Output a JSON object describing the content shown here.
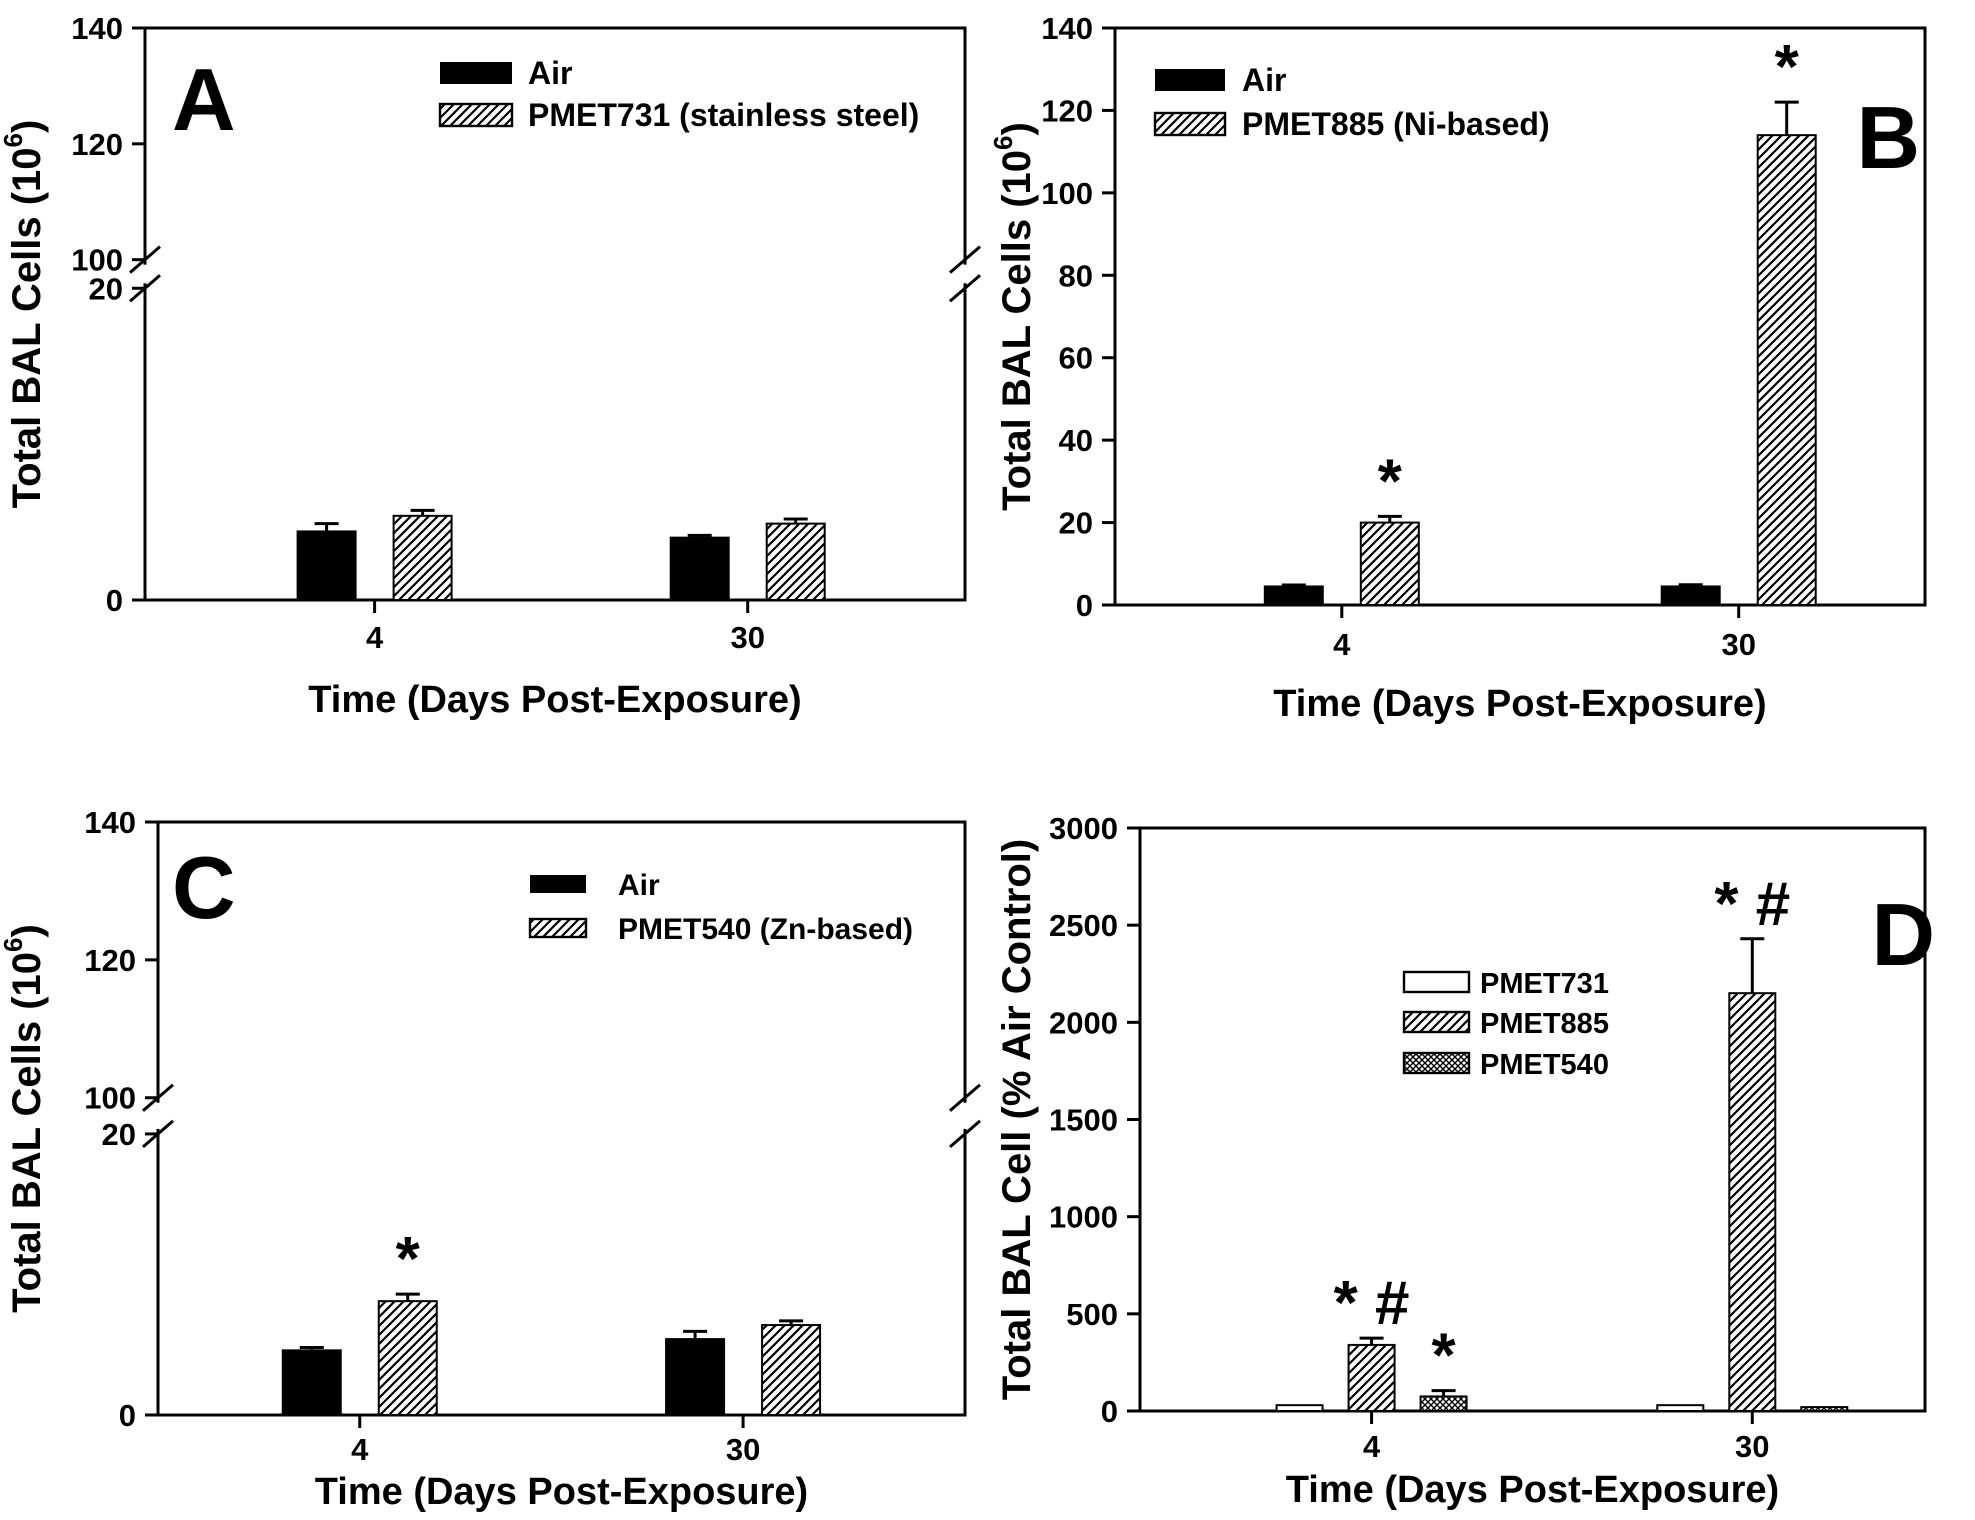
{
  "colors": {
    "ink": "#000000",
    "background": "#ffffff"
  },
  "chart_data": [
    {
      "panel": "A",
      "type": "bar",
      "letter": "A",
      "ylabel": "Total BAL Cells (10^6)",
      "ylabel_parts": {
        "main": "Total BAL Cells (10",
        "sup": "6",
        "end": ")"
      },
      "xlabel": "Time (Days Post-Exposure)",
      "categories": [
        "4",
        "30"
      ],
      "axis": {
        "style": "broken",
        "bottom": {
          "max": 20,
          "ticks": [
            0,
            20
          ]
        },
        "top": {
          "min": 100,
          "max": 140,
          "ticks": [
            100,
            120,
            140
          ]
        }
      },
      "series": [
        {
          "name": "Air",
          "pattern": "solid",
          "values": [
            4.4,
            4.0
          ],
          "errors": [
            0.5,
            0.15
          ]
        },
        {
          "name": "PMET731 (stainless steel)",
          "pattern": "diag",
          "values": [
            5.4,
            4.9
          ],
          "errors": [
            0.35,
            0.3
          ]
        }
      ],
      "annotations": [],
      "legend_position": "top-center"
    },
    {
      "panel": "B",
      "type": "bar",
      "letter": "B",
      "ylabel": "Total BAL Cells (10^6)",
      "ylabel_parts": {
        "main": "Total BAL Cells (10",
        "sup": "6",
        "end": ")"
      },
      "xlabel": "Time (Days Post-Exposure)",
      "categories": [
        "4",
        "30"
      ],
      "axis": {
        "style": "linear",
        "max": 140,
        "ticks": [
          0,
          20,
          40,
          60,
          80,
          100,
          120,
          140
        ]
      },
      "series": [
        {
          "name": "Air",
          "pattern": "solid",
          "values": [
            4.5,
            4.5
          ],
          "errors": [
            0.35,
            0.4
          ]
        },
        {
          "name": "PMET885 (Ni-based)",
          "pattern": "diag",
          "values": [
            20,
            114
          ],
          "errors": [
            1.5,
            8
          ]
        }
      ],
      "annotations": [
        {
          "category": 0,
          "series": 1,
          "text": "*"
        },
        {
          "category": 1,
          "series": 1,
          "text": "*"
        }
      ],
      "legend_position": "top-left"
    },
    {
      "panel": "C",
      "type": "bar",
      "letter": "C",
      "ylabel": "Total BAL Cells (10^6)",
      "ylabel_parts": {
        "main": "Total BAL Cells (10",
        "sup": "6",
        "end": ")"
      },
      "xlabel": "Time (Days Post-Exposure)",
      "categories": [
        "4",
        "30"
      ],
      "axis": {
        "style": "broken",
        "bottom": {
          "max": 20,
          "ticks": [
            0,
            20
          ]
        },
        "top": {
          "min": 100,
          "max": 140,
          "ticks": [
            100,
            120,
            140
          ]
        }
      },
      "series": [
        {
          "name": "Air",
          "pattern": "solid",
          "values": [
            4.6,
            5.4
          ],
          "errors": [
            0.2,
            0.55
          ]
        },
        {
          "name": "PMET540 (Zn-based)",
          "pattern": "diag",
          "values": [
            8.1,
            6.4
          ],
          "errors": [
            0.5,
            0.3
          ]
        }
      ],
      "annotations": [
        {
          "category": 0,
          "series": 1,
          "text": "*"
        }
      ],
      "legend_position": "top-right"
    },
    {
      "panel": "D",
      "type": "bar",
      "letter": "D",
      "ylabel": "Total BAL Cell (% Air Control)",
      "ylabel_parts": {
        "main": "Total BAL Cell (% Air Control)"
      },
      "xlabel": "Time (Days Post-Exposure)",
      "categories": [
        "4",
        "30"
      ],
      "axis": {
        "style": "linear",
        "max": 3000,
        "ticks": [
          0,
          500,
          1000,
          1500,
          2000,
          2500,
          3000
        ]
      },
      "series": [
        {
          "name": "PMET731",
          "pattern": "open",
          "values": [
            30,
            30
          ],
          "errors": [
            0,
            0
          ]
        },
        {
          "name": "PMET885",
          "pattern": "diag",
          "values": [
            340,
            2150
          ],
          "errors": [
            35,
            280
          ]
        },
        {
          "name": "PMET540",
          "pattern": "cross",
          "values": [
            75,
            20
          ],
          "errors": [
            30,
            0
          ]
        }
      ],
      "annotations": [
        {
          "category": 0,
          "series": 1,
          "text": "* #"
        },
        {
          "category": 0,
          "series": 2,
          "text": "*"
        },
        {
          "category": 1,
          "series": 1,
          "text": "* #"
        }
      ],
      "legend_position": "center"
    }
  ]
}
